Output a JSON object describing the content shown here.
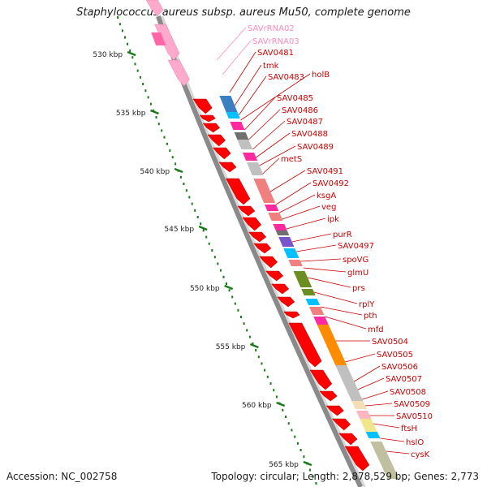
{
  "title": "Staphylococcus aureus subsp. aureus Mu50, complete genome",
  "footer": {
    "accession": "Accession: NC_002758",
    "topology": "Topology: circular; Length: 2,878,529 bp; Genes: 2,773"
  },
  "colors": {
    "gene_label": "#cc0000",
    "rna_label": "#ff88bb",
    "cds_forward": "#ff0000",
    "rna": "#ffaacc",
    "backbone": "#9a9a9a",
    "tick": "#1a7a1a"
  },
  "ruler_ticks": [
    "530 kbp",
    "535 kbp",
    "540 kbp",
    "545 kbp",
    "550 kbp",
    "555 kbp",
    "560 kbp",
    "565 kbp"
  ],
  "gene_labels": [
    {
      "text": "SAVrRNA02",
      "type": "rna"
    },
    {
      "text": "SAVrRNA03",
      "type": "rna"
    },
    {
      "text": "SAV0481",
      "type": "gene"
    },
    {
      "text": "tmk",
      "type": "gene"
    },
    {
      "text": "SAV0483",
      "type": "gene"
    },
    {
      "text": "holB",
      "type": "gene"
    },
    {
      "text": "SAV0485",
      "type": "gene"
    },
    {
      "text": "SAV0486",
      "type": "gene"
    },
    {
      "text": "SAV0487",
      "type": "gene"
    },
    {
      "text": "SAV0488",
      "type": "gene"
    },
    {
      "text": "SAV0489",
      "type": "gene"
    },
    {
      "text": "metS",
      "type": "gene"
    },
    {
      "text": "SAV0491",
      "type": "gene"
    },
    {
      "text": "SAV0492",
      "type": "gene"
    },
    {
      "text": "ksgA",
      "type": "gene"
    },
    {
      "text": "veg",
      "type": "gene"
    },
    {
      "text": "ipk",
      "type": "gene"
    },
    {
      "text": "purR",
      "type": "gene"
    },
    {
      "text": "SAV0497",
      "type": "gene"
    },
    {
      "text": "spoVG",
      "type": "gene"
    },
    {
      "text": "glmU",
      "type": "gene"
    },
    {
      "text": "prs",
      "type": "gene"
    },
    {
      "text": "rplY",
      "type": "gene"
    },
    {
      "text": "pth",
      "type": "gene"
    },
    {
      "text": "mfd",
      "type": "gene"
    },
    {
      "text": "SAV0504",
      "type": "gene"
    },
    {
      "text": "SAV0505",
      "type": "gene"
    },
    {
      "text": "SAV0506",
      "type": "gene"
    },
    {
      "text": "SAV0507",
      "type": "gene"
    },
    {
      "text": "SAV0508",
      "type": "gene"
    },
    {
      "text": "SAV0509",
      "type": "gene"
    },
    {
      "text": "SAV0510",
      "type": "gene"
    },
    {
      "text": "ftsH",
      "type": "gene"
    },
    {
      "text": "hslO",
      "type": "gene"
    },
    {
      "text": "cysK",
      "type": "gene"
    }
  ],
  "cog_blocks": [
    {
      "color": "#3a7fc0"
    },
    {
      "color": "#00c0ff"
    },
    {
      "color": "#ff2aa0"
    },
    {
      "color": "#707070"
    },
    {
      "color": "#c0c0c0"
    },
    {
      "color": "#ff2aa0"
    },
    {
      "color": "#c0c0c0"
    },
    {
      "color": "#f08080"
    },
    {
      "color": "#ff2aa0"
    },
    {
      "color": "#f08080"
    },
    {
      "color": "#ff2aa0"
    },
    {
      "color": "#707070"
    },
    {
      "color": "#7755cc"
    },
    {
      "color": "#00c0ff"
    },
    {
      "color": "#f08080"
    },
    {
      "color": "#6b8e23"
    },
    {
      "color": "#6b8e23"
    },
    {
      "color": "#00c0ff"
    },
    {
      "color": "#f08080"
    },
    {
      "color": "#ff2aa0"
    },
    {
      "color": "#ff8c00"
    },
    {
      "color": "#c0c0c0"
    },
    {
      "color": "#f5deb3"
    },
    {
      "color": "#ffb6c1"
    },
    {
      "color": "#f0e68c"
    },
    {
      "color": "#00c0ff"
    },
    {
      "color": "#c0c0a0"
    }
  ]
}
